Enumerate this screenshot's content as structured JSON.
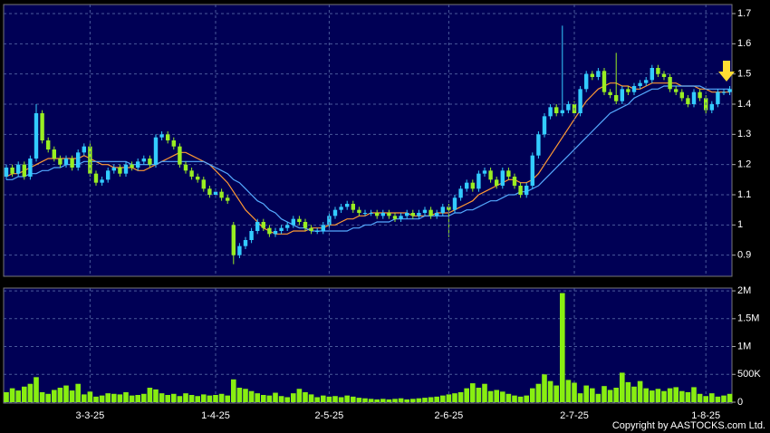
{
  "chart_data": [
    {
      "type": "candlestick",
      "up_color": "#33ccff",
      "down_color": "#99ee22",
      "ylim": [
        0.83,
        1.73
      ],
      "yticks": [
        0.9,
        1,
        1.1,
        1.2,
        1.3,
        1.4,
        1.5,
        1.6,
        1.7
      ],
      "grid": true,
      "open": [
        1.16,
        1.19,
        1.17,
        1.2,
        1.16,
        1.22,
        1.37,
        1.28,
        1.25,
        1.22,
        1.2,
        1.22,
        1.19,
        1.24,
        1.26,
        1.17,
        1.14,
        1.15,
        1.18,
        1.19,
        1.17,
        1.2,
        1.19,
        1.21,
        1.22,
        1.2,
        1.29,
        1.3,
        1.28,
        1.26,
        1.2,
        1.18,
        1.16,
        1.15,
        1.12,
        1.1,
        1.11,
        1.09,
        1.0,
        0.9,
        0.93,
        0.95,
        0.98,
        1.01,
        0.99,
        0.97,
        0.98,
        0.99,
        1.0,
        1.02,
        1.01,
        0.99,
        0.98,
        0.98,
        1.0,
        1.03,
        1.05,
        1.06,
        1.07,
        1.05,
        1.04,
        1.04,
        1.04,
        1.03,
        1.04,
        1.03,
        1.02,
        1.03,
        1.04,
        1.03,
        1.04,
        1.05,
        1.03,
        1.04,
        1.06,
        1.05,
        1.09,
        1.12,
        1.14,
        1.12,
        1.17,
        1.18,
        1.15,
        1.13,
        1.18,
        1.16,
        1.13,
        1.1,
        1.13,
        1.23,
        1.3,
        1.36,
        1.39,
        1.37,
        1.38,
        1.4,
        1.37,
        1.45,
        1.5,
        1.49,
        1.51,
        1.44,
        1.43,
        1.41,
        1.45,
        1.44,
        1.46,
        1.47,
        1.48,
        1.52,
        1.5,
        1.49,
        1.45,
        1.44,
        1.42,
        1.4,
        1.44,
        1.42,
        1.38,
        1.4,
        1.44,
        1.44
      ],
      "high": [
        1.2,
        1.2,
        1.21,
        1.21,
        1.23,
        1.4,
        1.38,
        1.29,
        1.26,
        1.23,
        1.23,
        1.23,
        1.25,
        1.27,
        1.27,
        1.18,
        1.16,
        1.19,
        1.2,
        1.2,
        1.21,
        1.21,
        1.22,
        1.23,
        1.23,
        1.3,
        1.31,
        1.31,
        1.29,
        1.27,
        1.21,
        1.19,
        1.17,
        1.16,
        1.13,
        1.12,
        1.12,
        1.1,
        1.01,
        0.94,
        0.96,
        0.99,
        1.02,
        1.02,
        1.0,
        0.99,
        1.0,
        1.01,
        1.03,
        1.03,
        1.02,
        1.0,
        0.99,
        1.01,
        1.04,
        1.06,
        1.07,
        1.08,
        1.08,
        1.06,
        1.05,
        1.05,
        1.05,
        1.05,
        1.05,
        1.04,
        1.04,
        1.05,
        1.05,
        1.05,
        1.06,
        1.06,
        1.05,
        1.07,
        1.07,
        1.1,
        1.13,
        1.15,
        1.15,
        1.18,
        1.19,
        1.19,
        1.16,
        1.19,
        1.19,
        1.17,
        1.14,
        1.14,
        1.24,
        1.31,
        1.37,
        1.4,
        1.4,
        1.66,
        1.41,
        1.41,
        1.46,
        1.51,
        1.51,
        1.52,
        1.52,
        1.45,
        1.57,
        1.46,
        1.46,
        1.47,
        1.48,
        1.49,
        1.53,
        1.53,
        1.51,
        1.5,
        1.46,
        1.45,
        1.43,
        1.45,
        1.45,
        1.43,
        1.41,
        1.45,
        1.45,
        1.46
      ],
      "low": [
        1.15,
        1.16,
        1.16,
        1.15,
        1.15,
        1.21,
        1.27,
        1.24,
        1.21,
        1.19,
        1.19,
        1.18,
        1.18,
        1.23,
        1.16,
        1.13,
        1.13,
        1.14,
        1.17,
        1.16,
        1.16,
        1.18,
        1.18,
        1.2,
        1.19,
        1.19,
        1.28,
        1.27,
        1.25,
        1.19,
        1.17,
        1.15,
        1.14,
        1.11,
        1.09,
        1.09,
        1.08,
        1.07,
        0.87,
        0.89,
        0.92,
        0.94,
        0.97,
        0.98,
        0.96,
        0.96,
        0.97,
        0.98,
        0.99,
        1.0,
        0.98,
        0.97,
        0.97,
        0.97,
        0.99,
        1.02,
        1.04,
        1.05,
        1.04,
        1.03,
        1.03,
        1.03,
        1.02,
        1.02,
        1.02,
        1.01,
        1.01,
        1.02,
        1.02,
        1.02,
        1.03,
        1.02,
        1.02,
        1.03,
        0.96,
        1.04,
        1.08,
        1.11,
        1.11,
        1.11,
        1.16,
        1.14,
        1.12,
        1.12,
        1.15,
        1.12,
        1.09,
        1.09,
        1.12,
        1.22,
        1.29,
        1.35,
        1.36,
        1.36,
        1.37,
        1.36,
        1.36,
        1.44,
        1.48,
        1.48,
        1.43,
        1.42,
        1.4,
        1.4,
        1.43,
        1.43,
        1.45,
        1.46,
        1.47,
        1.49,
        1.48,
        1.44,
        1.43,
        1.41,
        1.39,
        1.39,
        1.41,
        1.37,
        1.37,
        1.39,
        1.43,
        1.43
      ],
      "close": [
        1.19,
        1.17,
        1.2,
        1.16,
        1.22,
        1.37,
        1.28,
        1.25,
        1.22,
        1.2,
        1.22,
        1.19,
        1.24,
        1.26,
        1.17,
        1.14,
        1.15,
        1.18,
        1.19,
        1.17,
        1.2,
        1.19,
        1.21,
        1.22,
        1.2,
        1.29,
        1.3,
        1.28,
        1.26,
        1.2,
        1.18,
        1.16,
        1.15,
        1.12,
        1.1,
        1.11,
        1.09,
        1.08,
        0.9,
        0.93,
        0.95,
        0.98,
        1.01,
        0.99,
        0.97,
        0.98,
        0.99,
        1.0,
        1.02,
        1.01,
        0.99,
        0.98,
        0.98,
        1.0,
        1.03,
        1.05,
        1.06,
        1.07,
        1.05,
        1.04,
        1.04,
        1.04,
        1.03,
        1.04,
        1.03,
        1.02,
        1.03,
        1.04,
        1.03,
        1.04,
        1.05,
        1.03,
        1.04,
        1.06,
        1.05,
        1.09,
        1.12,
        1.14,
        1.12,
        1.17,
        1.18,
        1.15,
        1.13,
        1.18,
        1.16,
        1.13,
        1.1,
        1.13,
        1.23,
        1.3,
        1.36,
        1.39,
        1.37,
        1.38,
        1.4,
        1.37,
        1.45,
        1.5,
        1.49,
        1.51,
        1.44,
        1.43,
        1.41,
        1.45,
        1.44,
        1.46,
        1.47,
        1.48,
        1.52,
        1.5,
        1.49,
        1.45,
        1.44,
        1.42,
        1.4,
        1.44,
        1.42,
        1.38,
        1.4,
        1.44,
        1.44,
        1.45
      ],
      "series": [
        {
          "color": "#ff9933",
          "values": [
            1.16,
            1.17,
            1.17,
            1.18,
            1.19,
            1.2,
            1.21,
            1.22,
            1.22,
            1.22,
            1.22,
            1.22,
            1.22,
            1.23,
            1.22,
            1.21,
            1.2,
            1.2,
            1.19,
            1.19,
            1.19,
            1.19,
            1.18,
            1.18,
            1.19,
            1.2,
            1.21,
            1.22,
            1.23,
            1.24,
            1.24,
            1.23,
            1.22,
            1.21,
            1.2,
            1.18,
            1.16,
            1.14,
            1.11,
            1.08,
            1.05,
            1.03,
            1.01,
            0.99,
            0.98,
            0.97,
            0.97,
            0.97,
            0.98,
            0.98,
            0.98,
            0.99,
            0.99,
            0.99,
            1.0,
            1.0,
            1.01,
            1.02,
            1.02,
            1.03,
            1.03,
            1.04,
            1.04,
            1.04,
            1.04,
            1.04,
            1.04,
            1.04,
            1.03,
            1.03,
            1.03,
            1.03,
            1.04,
            1.04,
            1.04,
            1.05,
            1.06,
            1.07,
            1.08,
            1.1,
            1.11,
            1.12,
            1.13,
            1.14,
            1.15,
            1.15,
            1.14,
            1.14,
            1.15,
            1.17,
            1.2,
            1.23,
            1.26,
            1.29,
            1.32,
            1.35,
            1.38,
            1.41,
            1.43,
            1.45,
            1.46,
            1.47,
            1.47,
            1.46,
            1.46,
            1.45,
            1.45,
            1.46,
            1.47,
            1.47,
            1.47,
            1.47,
            1.47,
            1.46,
            1.46,
            1.46,
            1.45,
            1.45,
            1.44,
            1.44,
            1.44,
            1.44
          ]
        },
        {
          "color": "#55aaff",
          "values": [
            1.15,
            1.15,
            1.16,
            1.16,
            1.17,
            1.17,
            1.18,
            1.18,
            1.19,
            1.19,
            1.2,
            1.2,
            1.2,
            1.21,
            1.21,
            1.21,
            1.21,
            1.21,
            1.21,
            1.21,
            1.21,
            1.2,
            1.2,
            1.2,
            1.2,
            1.2,
            1.21,
            1.21,
            1.21,
            1.21,
            1.21,
            1.21,
            1.21,
            1.21,
            1.2,
            1.19,
            1.18,
            1.17,
            1.15,
            1.14,
            1.12,
            1.1,
            1.08,
            1.07,
            1.05,
            1.04,
            1.02,
            1.01,
            1.0,
            0.99,
            0.99,
            0.98,
            0.98,
            0.98,
            0.98,
            0.98,
            0.98,
            0.98,
            0.99,
            0.99,
            1.0,
            1.0,
            1.01,
            1.01,
            1.01,
            1.02,
            1.02,
            1.02,
            1.02,
            1.02,
            1.03,
            1.03,
            1.03,
            1.03,
            1.03,
            1.04,
            1.04,
            1.05,
            1.05,
            1.06,
            1.07,
            1.08,
            1.08,
            1.09,
            1.1,
            1.1,
            1.11,
            1.11,
            1.12,
            1.13,
            1.15,
            1.17,
            1.19,
            1.21,
            1.23,
            1.25,
            1.27,
            1.29,
            1.31,
            1.33,
            1.35,
            1.37,
            1.38,
            1.39,
            1.4,
            1.42,
            1.43,
            1.44,
            1.45,
            1.45,
            1.46,
            1.46,
            1.46,
            1.46,
            1.46,
            1.46,
            1.46,
            1.45,
            1.45,
            1.45,
            1.45,
            1.45
          ]
        }
      ]
    },
    {
      "type": "bar",
      "color": "#88ee11",
      "ylim": [
        0,
        2050000
      ],
      "yticks": [
        0,
        {
          "value": 500000,
          "label": "500K"
        },
        {
          "value": 1000000,
          "label": "1M"
        },
        {
          "value": 1500000,
          "label": "1.5M"
        },
        {
          "value": 2000000,
          "label": "2M"
        }
      ],
      "grid": true,
      "categories": [
        null,
        null,
        null,
        null,
        null,
        null,
        null,
        null,
        null,
        null,
        null,
        null,
        null,
        null,
        "3-3-25",
        null,
        null,
        null,
        null,
        null,
        null,
        null,
        null,
        null,
        null,
        null,
        null,
        null,
        null,
        null,
        null,
        null,
        null,
        null,
        null,
        "1-4-25",
        null,
        null,
        null,
        null,
        null,
        null,
        null,
        null,
        null,
        null,
        null,
        null,
        null,
        null,
        null,
        null,
        null,
        null,
        "2-5-25",
        null,
        null,
        null,
        null,
        null,
        null,
        null,
        null,
        null,
        null,
        null,
        null,
        null,
        null,
        null,
        null,
        null,
        null,
        null,
        "2-6-25",
        null,
        null,
        null,
        null,
        null,
        null,
        null,
        null,
        null,
        null,
        null,
        null,
        null,
        null,
        null,
        null,
        null,
        null,
        null,
        null,
        "2-7-25",
        null,
        null,
        null,
        null,
        null,
        null,
        null,
        null,
        null,
        null,
        null,
        null,
        null,
        null,
        null,
        null,
        null,
        null,
        null,
        null,
        null,
        "1-8-25",
        null,
        null,
        null,
        null
      ],
      "values": [
        180000,
        250000,
        210000,
        280000,
        330000,
        450000,
        180000,
        150000,
        220000,
        260000,
        300000,
        210000,
        330000,
        140000,
        190000,
        100000,
        120000,
        160000,
        150000,
        140000,
        180000,
        120000,
        130000,
        150000,
        260000,
        230000,
        160000,
        130000,
        150000,
        110000,
        160000,
        130000,
        110000,
        140000,
        120000,
        130000,
        150000,
        120000,
        410000,
        260000,
        240000,
        200000,
        160000,
        130000,
        120000,
        170000,
        110000,
        90000,
        160000,
        240000,
        180000,
        140000,
        90000,
        120000,
        100000,
        110000,
        90000,
        120000,
        100000,
        80000,
        70000,
        60000,
        50000,
        60000,
        50000,
        60000,
        70000,
        50000,
        60000,
        70000,
        80000,
        90000,
        100000,
        120000,
        140000,
        160000,
        180000,
        250000,
        340000,
        260000,
        330000,
        200000,
        220000,
        190000,
        150000,
        120000,
        100000,
        120000,
        250000,
        330000,
        500000,
        380000,
        300000,
        1960000,
        400000,
        350000,
        160000,
        300000,
        250000,
        150000,
        290000,
        220000,
        260000,
        530000,
        360000,
        280000,
        380000,
        250000,
        210000,
        240000,
        200000,
        250000,
        270000,
        200000,
        180000,
        270000,
        150000,
        110000,
        160000,
        100000,
        120000,
        150000
      ]
    }
  ],
  "footer": "Copyright by AASTOCKS.com Ltd."
}
